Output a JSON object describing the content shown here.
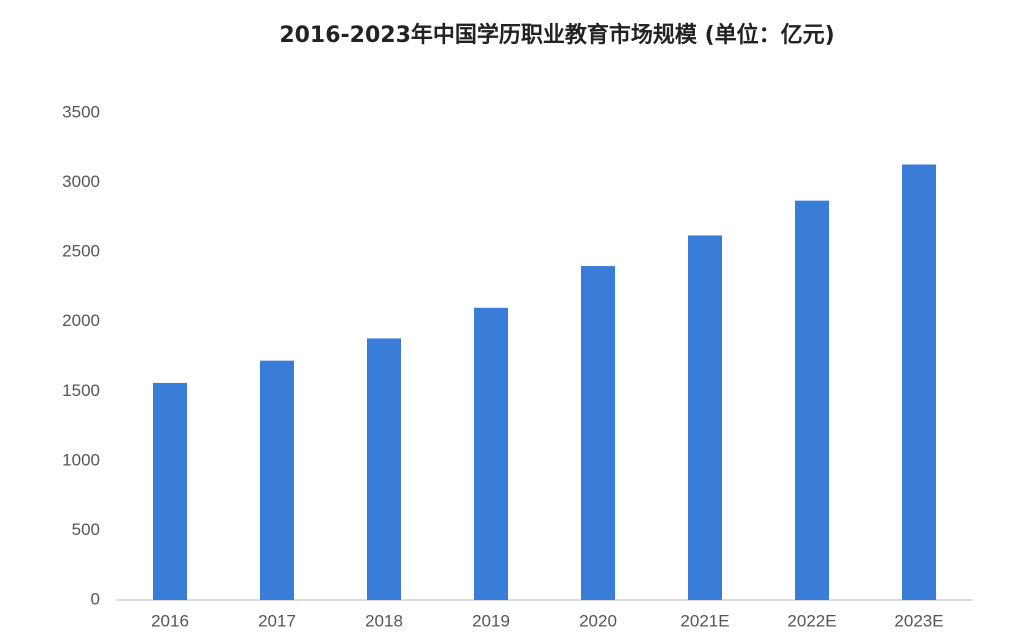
{
  "chart_data": {
    "type": "bar",
    "title": "2016-2023年中国学历职业教育市场规模 (单位：亿元)",
    "categories": [
      "2016",
      "2017",
      "2018",
      "2019",
      "2020",
      "2021E",
      "2022E",
      "2023E"
    ],
    "values": [
      1560,
      1720,
      1880,
      2100,
      2400,
      2620,
      2870,
      3130
    ],
    "color": "#3a7dd8",
    "ylim": [
      0,
      3500
    ],
    "yticks": [
      0,
      500,
      1000,
      1500,
      2000,
      2500,
      3000,
      3500
    ],
    "grid": false
  }
}
